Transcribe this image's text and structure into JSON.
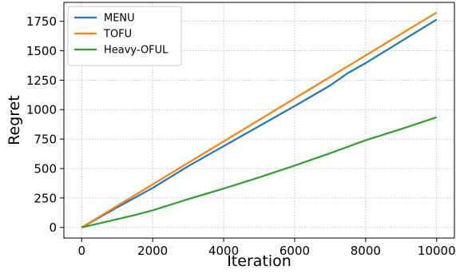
{
  "chart_data": {
    "type": "line",
    "title": "",
    "xlabel": "Iteration",
    "ylabel": "Regret",
    "xlim": [
      -500,
      10500
    ],
    "ylim": [
      -90,
      1910
    ],
    "xticks": [
      0,
      2000,
      4000,
      6000,
      8000,
      10000
    ],
    "yticks": [
      0,
      250,
      500,
      750,
      1000,
      1250,
      1500,
      1750
    ],
    "grid": true,
    "legend_position": "top-left",
    "series": [
      {
        "name": "MENU",
        "color": "#1f77b4",
        "x": [
          0,
          1000,
          2000,
          3000,
          4000,
          5000,
          6000,
          7000,
          7500,
          8000,
          9000,
          10000
        ],
        "y": [
          0,
          170,
          335,
          520,
          690,
          860,
          1030,
          1205,
          1310,
          1395,
          1580,
          1765
        ]
      },
      {
        "name": "TOFU",
        "color": "#ff7f0e",
        "x": [
          0,
          2000,
          4000,
          6000,
          8000,
          10000
        ],
        "y": [
          0,
          365,
          730,
          1095,
          1460,
          1825
        ]
      },
      {
        "name": "Heavy-OFUL",
        "color": "#2ca02c",
        "x": [
          0,
          500,
          1000,
          1500,
          2000,
          3000,
          4000,
          5000,
          6000,
          7000,
          8000,
          9000,
          10000
        ],
        "y": [
          0,
          35,
          70,
          105,
          145,
          240,
          330,
          425,
          525,
          630,
          740,
          835,
          935
        ]
      }
    ]
  }
}
